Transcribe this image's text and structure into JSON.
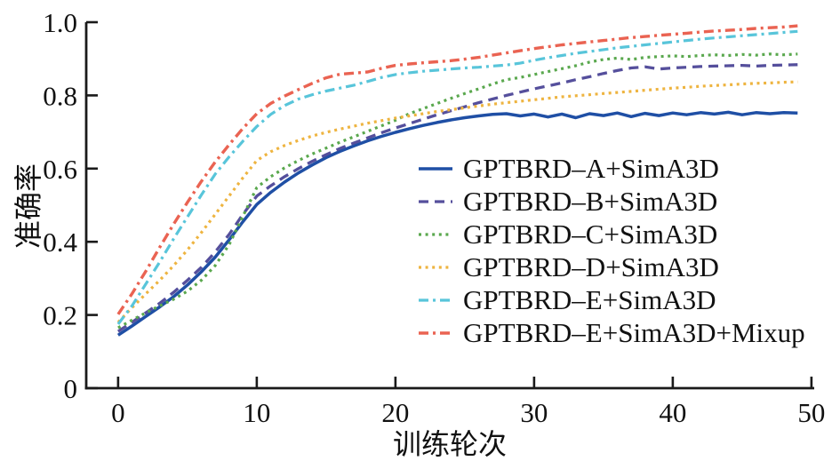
{
  "background": "#ffffff",
  "text_color": "#111111",
  "axis_color": "#1a1a1a",
  "chart_data": {
    "type": "line",
    "title": "",
    "xlabel": "训练轮次",
    "ylabel": "准确率",
    "grid": false,
    "legend_position": "inside-right",
    "legend_frame": false,
    "xlim": [
      -2.3,
      50.2
    ],
    "ylim": [
      0,
      1.0
    ],
    "x_ticks": [
      0,
      10,
      20,
      30,
      40,
      50
    ],
    "x_tick_labels": [
      "0",
      "10",
      "20",
      "30",
      "40",
      "50"
    ],
    "y_ticks": [
      0,
      0.2,
      0.4,
      0.6,
      0.8,
      1.0
    ],
    "y_tick_labels": [
      "0",
      "0.2",
      "0.4",
      "0.6",
      "0.8",
      "1.0"
    ],
    "x": [
      0,
      1,
      2,
      3,
      4,
      5,
      6,
      7,
      8,
      9,
      10,
      11,
      12,
      13,
      14,
      15,
      16,
      17,
      18,
      19,
      20,
      21,
      22,
      23,
      24,
      25,
      26,
      27,
      28,
      29,
      30,
      31,
      32,
      33,
      34,
      35,
      36,
      37,
      38,
      39,
      40,
      41,
      42,
      43,
      44,
      45,
      46,
      47,
      48,
      49
    ],
    "series": [
      {
        "name": "GPTBRD–A+SimA3D",
        "color": "#1f4fa5",
        "dash": "solid",
        "width": 3.5,
        "values": [
          0.145,
          0.17,
          0.196,
          0.222,
          0.25,
          0.282,
          0.318,
          0.358,
          0.405,
          0.455,
          0.502,
          0.535,
          0.563,
          0.588,
          0.61,
          0.63,
          0.647,
          0.662,
          0.676,
          0.688,
          0.699,
          0.709,
          0.718,
          0.726,
          0.733,
          0.739,
          0.744,
          0.748,
          0.75,
          0.744,
          0.749,
          0.741,
          0.749,
          0.739,
          0.75,
          0.745,
          0.752,
          0.742,
          0.751,
          0.745,
          0.752,
          0.747,
          0.753,
          0.749,
          0.754,
          0.747,
          0.753,
          0.75,
          0.753,
          0.752
        ]
      },
      {
        "name": "GPTBRD–B+SimA3D",
        "color": "#554f9c",
        "dash": "dashed",
        "width": 3.3,
        "values": [
          0.155,
          0.18,
          0.206,
          0.232,
          0.262,
          0.295,
          0.33,
          0.372,
          0.42,
          0.475,
          0.525,
          0.553,
          0.578,
          0.6,
          0.62,
          0.638,
          0.655,
          0.67,
          0.684,
          0.698,
          0.711,
          0.723,
          0.735,
          0.747,
          0.758,
          0.769,
          0.78,
          0.79,
          0.8,
          0.809,
          0.818,
          0.826,
          0.834,
          0.843,
          0.851,
          0.86,
          0.868,
          0.875,
          0.878,
          0.872,
          0.875,
          0.877,
          0.879,
          0.88,
          0.881,
          0.882,
          0.88,
          0.882,
          0.883,
          0.884
        ]
      },
      {
        "name": "GPTBRD–C+SimA3D",
        "color": "#5aa84e",
        "dash": "dotted",
        "width": 3.2,
        "values": [
          0.165,
          0.186,
          0.206,
          0.225,
          0.243,
          0.265,
          0.295,
          0.335,
          0.392,
          0.47,
          0.548,
          0.578,
          0.602,
          0.622,
          0.64,
          0.656,
          0.672,
          0.687,
          0.702,
          0.717,
          0.732,
          0.75,
          0.764,
          0.778,
          0.792,
          0.805,
          0.818,
          0.831,
          0.843,
          0.849,
          0.857,
          0.865,
          0.873,
          0.881,
          0.891,
          0.898,
          0.902,
          0.898,
          0.904,
          0.906,
          0.908,
          0.906,
          0.909,
          0.911,
          0.909,
          0.912,
          0.91,
          0.913,
          0.911,
          0.913
        ]
      },
      {
        "name": "GPTBRD–D+SimA3D",
        "color": "#eeb440",
        "dash": "dotted",
        "width": 3.2,
        "values": [
          0.18,
          0.22,
          0.258,
          0.295,
          0.335,
          0.378,
          0.425,
          0.475,
          0.525,
          0.575,
          0.622,
          0.646,
          0.663,
          0.677,
          0.689,
          0.699,
          0.708,
          0.716,
          0.724,
          0.731,
          0.738,
          0.744,
          0.75,
          0.756,
          0.761,
          0.766,
          0.771,
          0.776,
          0.78,
          0.784,
          0.788,
          0.792,
          0.796,
          0.799,
          0.802,
          0.805,
          0.808,
          0.811,
          0.814,
          0.817,
          0.82,
          0.822,
          0.825,
          0.827,
          0.829,
          0.831,
          0.833,
          0.834,
          0.836,
          0.837
        ]
      },
      {
        "name": "GPTBRD–E+SimA3D",
        "color": "#58c5da",
        "dash": "dashdot",
        "width": 3.2,
        "values": [
          0.175,
          0.225,
          0.285,
          0.345,
          0.408,
          0.468,
          0.528,
          0.585,
          0.632,
          0.675,
          0.715,
          0.748,
          0.772,
          0.79,
          0.802,
          0.812,
          0.82,
          0.828,
          0.838,
          0.849,
          0.857,
          0.862,
          0.866,
          0.869,
          0.872,
          0.875,
          0.877,
          0.88,
          0.883,
          0.888,
          0.896,
          0.903,
          0.909,
          0.915,
          0.92,
          0.925,
          0.93,
          0.934,
          0.938,
          0.942,
          0.946,
          0.95,
          0.954,
          0.957,
          0.96,
          0.963,
          0.966,
          0.969,
          0.972,
          0.975
        ]
      },
      {
        "name": "GPTBRD–E+SimA3D+Mixup",
        "color": "#ea6352",
        "dash": "dashdot",
        "width": 3.4,
        "values": [
          0.202,
          0.258,
          0.32,
          0.385,
          0.448,
          0.508,
          0.565,
          0.618,
          0.665,
          0.71,
          0.75,
          0.778,
          0.798,
          0.816,
          0.833,
          0.848,
          0.858,
          0.861,
          0.864,
          0.874,
          0.882,
          0.886,
          0.889,
          0.892,
          0.895,
          0.899,
          0.904,
          0.91,
          0.916,
          0.922,
          0.928,
          0.933,
          0.938,
          0.942,
          0.946,
          0.95,
          0.954,
          0.958,
          0.961,
          0.964,
          0.967,
          0.97,
          0.973,
          0.976,
          0.978,
          0.98,
          0.983,
          0.985,
          0.987,
          0.99
        ]
      }
    ]
  }
}
